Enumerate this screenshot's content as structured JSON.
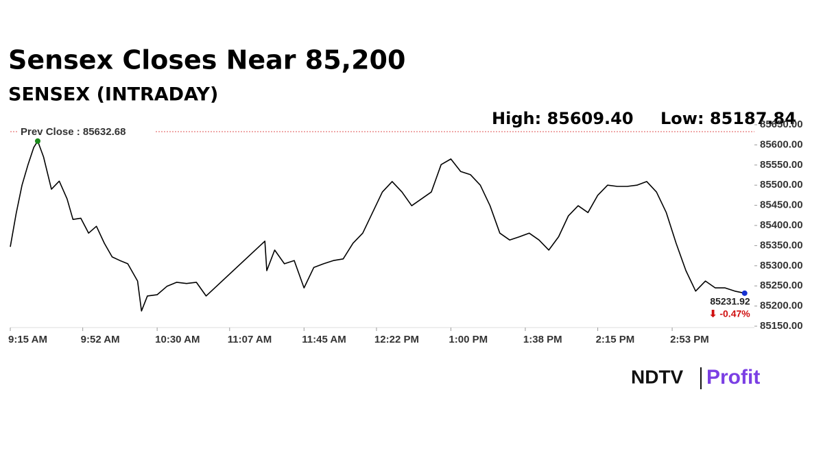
{
  "chart_data": {
    "type": "line",
    "title": "Sensex Closes Near 85,200",
    "subtitle": "SENSEX (INTRADAY)",
    "high_label": "High: 85609.40",
    "low_label": "Low: 85187.84",
    "prev_close_label": "Prev Close : 85632.68",
    "prev_close": 85632.68,
    "last_label": "85231.92",
    "change_label": "⬇ -0.47%",
    "brand": "NDTV",
    "brand_product": "Profit",
    "color": "#000000",
    "x": [
      "9:15 AM",
      "9:18 AM",
      "9:21 AM",
      "9:24 AM",
      "9:27 AM",
      "9:29 AM",
      "9:32 AM",
      "9:36 AM",
      "9:40 AM",
      "9:44 AM",
      "9:47 AM",
      "9:51 AM",
      "9:55 AM",
      "9:59 AM",
      "10:03 AM",
      "10:07 AM",
      "10:11 AM",
      "10:15 AM",
      "10:20 AM",
      "10:22 AM",
      "10:25 AM",
      "10:30 AM",
      "10:35 AM",
      "10:40 AM",
      "10:45 AM",
      "10:50 AM",
      "10:55 AM",
      "11:25 AM",
      "11:26 AM",
      "11:30 AM",
      "11:35 AM",
      "11:40 AM",
      "11:45 AM",
      "11:50 AM",
      "11:55 AM",
      "12:00 PM",
      "12:05 PM",
      "12:10 PM",
      "12:15 PM",
      "12:20 PM",
      "12:25 PM",
      "12:30 PM",
      "12:35 PM",
      "12:40 PM",
      "12:45 PM",
      "12:50 PM",
      "12:55 PM",
      "1:00 PM",
      "1:05 PM",
      "1:10 PM",
      "1:15 PM",
      "1:20 PM",
      "1:25 PM",
      "1:30 PM",
      "1:35 PM",
      "1:40 PM",
      "1:45 PM",
      "1:50 PM",
      "1:55 PM",
      "2:00 PM",
      "2:05 PM",
      "2:10 PM",
      "2:15 PM",
      "2:20 PM",
      "2:25 PM",
      "2:30 PM",
      "2:35 PM",
      "2:40 PM",
      "2:45 PM",
      "2:50 PM",
      "2:55 PM",
      "3:00 PM",
      "3:05 PM",
      "3:10 PM",
      "3:15 PM",
      "3:20 PM",
      "3:25 PM",
      "3:30 PM"
    ],
    "values": [
      85347,
      85430,
      85500,
      85550,
      85594,
      85609.4,
      85570,
      85490,
      85510,
      85466,
      85415,
      85418,
      85381,
      85398,
      85356,
      85322,
      85313,
      85305,
      85262,
      85187.84,
      85225,
      85228,
      85249,
      85259,
      85256,
      85259,
      85225,
      85361,
      85288,
      85339,
      85305,
      85313,
      85245,
      85296,
      85305,
      85313,
      85317,
      85356,
      85381,
      85432,
      85483,
      85509,
      85483,
      85449,
      85466,
      85483,
      85551,
      85565,
      85534,
      85526,
      85500,
      85449,
      85381,
      85364,
      85372,
      85381,
      85364,
      85339,
      85372,
      85424,
      85449,
      85432,
      85475,
      85500,
      85497,
      85497,
      85500,
      85509,
      85483,
      85432,
      85356,
      85288,
      85237,
      85262,
      85245,
      85245,
      85237,
      85231.92
    ],
    "xlim": [
      "9:15 AM",
      "3:35 PM"
    ],
    "xticks": [
      "9:15 AM",
      "9:52 AM",
      "10:30 AM",
      "11:07 AM",
      "11:45 AM",
      "12:22 PM",
      "1:00 PM",
      "1:38 PM",
      "2:15 PM",
      "2:53 PM"
    ],
    "ylim": [
      85150,
      85650
    ],
    "yticks": [
      {
        "value": 85150,
        "label": "85150.00"
      },
      {
        "value": 85200,
        "label": "85200.00"
      },
      {
        "value": 85250,
        "label": "85250.00"
      },
      {
        "value": 85300,
        "label": "85300.00"
      },
      {
        "value": 85350,
        "label": "85350.00"
      },
      {
        "value": 85400,
        "label": "85400.00"
      },
      {
        "value": 85450,
        "label": "85450.00"
      },
      {
        "value": 85500,
        "label": "85500.00"
      },
      {
        "value": 85550,
        "label": "85550.00"
      },
      {
        "value": 85600,
        "label": "85600.00"
      },
      {
        "value": 85650,
        "label": "85650.00"
      }
    ]
  }
}
